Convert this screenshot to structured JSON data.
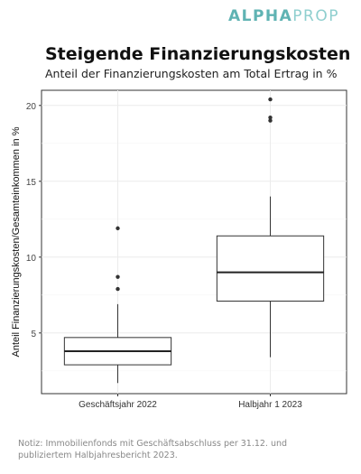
{
  "brand": {
    "logo_part1": "ALPHA",
    "logo_part2": "PROP",
    "color1": "#5fb3b3",
    "color2": "#8fcfcf"
  },
  "header": {
    "title": "Steigende Finanzierungskosten",
    "subtitle": "Anteil der Finanzierungskosten am Total Ertrag in %"
  },
  "chart_data": {
    "type": "boxplot",
    "ylabel": "Anteil Finanzierungskosten/Gesamteinkommen in %",
    "xlabel": "",
    "ylim": [
      1.0,
      21.0
    ],
    "yticks": [
      5,
      10,
      15,
      20
    ],
    "grid": true,
    "categories": [
      "Geschäftsjahr 2022",
      "Halbjahr 1 2023"
    ],
    "boxes": [
      {
        "whisker_low": 1.7,
        "q1": 2.9,
        "median": 3.8,
        "q3": 4.7,
        "whisker_high": 6.9,
        "outliers": [
          7.9,
          8.7,
          11.9
        ]
      },
      {
        "whisker_low": 3.4,
        "q1": 7.1,
        "median": 9.0,
        "q3": 11.4,
        "whisker_high": 14.0,
        "outliers": [
          19.0,
          19.2,
          20.4
        ]
      }
    ]
  },
  "footer": {
    "note": "Notiz: Immobilienfonds mit Geschäftsabschluss per 31.12. und publiziertem Halbjahresbericht 2023."
  }
}
